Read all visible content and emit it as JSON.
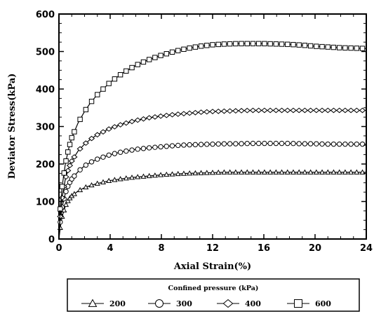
{
  "chart_data": {
    "type": "line",
    "xlabel": "Axial Strain(%)",
    "ylabel": "Deviator Stress(kPa)",
    "xlim": [
      0,
      24
    ],
    "ylim": [
      0,
      600
    ],
    "x_ticks": [
      0,
      4,
      8,
      12,
      16,
      20,
      24
    ],
    "y_ticks": [
      0,
      100,
      200,
      300,
      400,
      500,
      600
    ],
    "x_tick_labels": [
      "0",
      "4",
      "8",
      "12",
      "16",
      "20",
      "24"
    ],
    "y_tick_labels": [
      "0",
      "100",
      "200",
      "300",
      "400",
      "500",
      "600"
    ],
    "grid": false,
    "legend_title": "Confined pressure (kPa)",
    "legend_placement": "bottom",
    "x": [
      0,
      0.1,
      0.25,
      0.5,
      0.75,
      1,
      1.5,
      2,
      2.5,
      3,
      4,
      5,
      6,
      7,
      8,
      9,
      10,
      11,
      12,
      13,
      14,
      15,
      16,
      17,
      18,
      19,
      20,
      21,
      22,
      23,
      24
    ],
    "series": [
      {
        "name": "200",
        "marker": "triangle",
        "values": [
          0,
          30,
          60,
          88,
          105,
          115,
          128,
          137,
          143,
          148,
          156,
          161,
          165,
          168,
          171,
          173,
          175,
          176,
          177,
          178,
          178,
          178,
          178,
          178,
          178,
          178,
          178,
          178,
          178,
          178,
          178
        ]
      },
      {
        "name": "300",
        "marker": "circle",
        "values": [
          0,
          45,
          85,
          122,
          145,
          160,
          180,
          195,
          205,
          213,
          225,
          233,
          239,
          243,
          246,
          249,
          251,
          252,
          253,
          254,
          254,
          255,
          255,
          255,
          255,
          254,
          254,
          253,
          253,
          253,
          253
        ]
      },
      {
        "name": "400",
        "marker": "diamond",
        "values": [
          0,
          60,
          110,
          160,
          188,
          208,
          235,
          253,
          267,
          278,
          295,
          307,
          316,
          323,
          328,
          332,
          335,
          338,
          340,
          341,
          342,
          343,
          343,
          343,
          343,
          343,
          343,
          343,
          343,
          343,
          343
        ]
      },
      {
        "name": "600",
        "marker": "square",
        "values": [
          0,
          80,
          140,
          200,
          240,
          270,
          310,
          340,
          365,
          385,
          418,
          443,
          463,
          478,
          490,
          500,
          508,
          514,
          518,
          520,
          521,
          521,
          521,
          520,
          519,
          517,
          514,
          512,
          510,
          509,
          508
        ]
      }
    ]
  }
}
